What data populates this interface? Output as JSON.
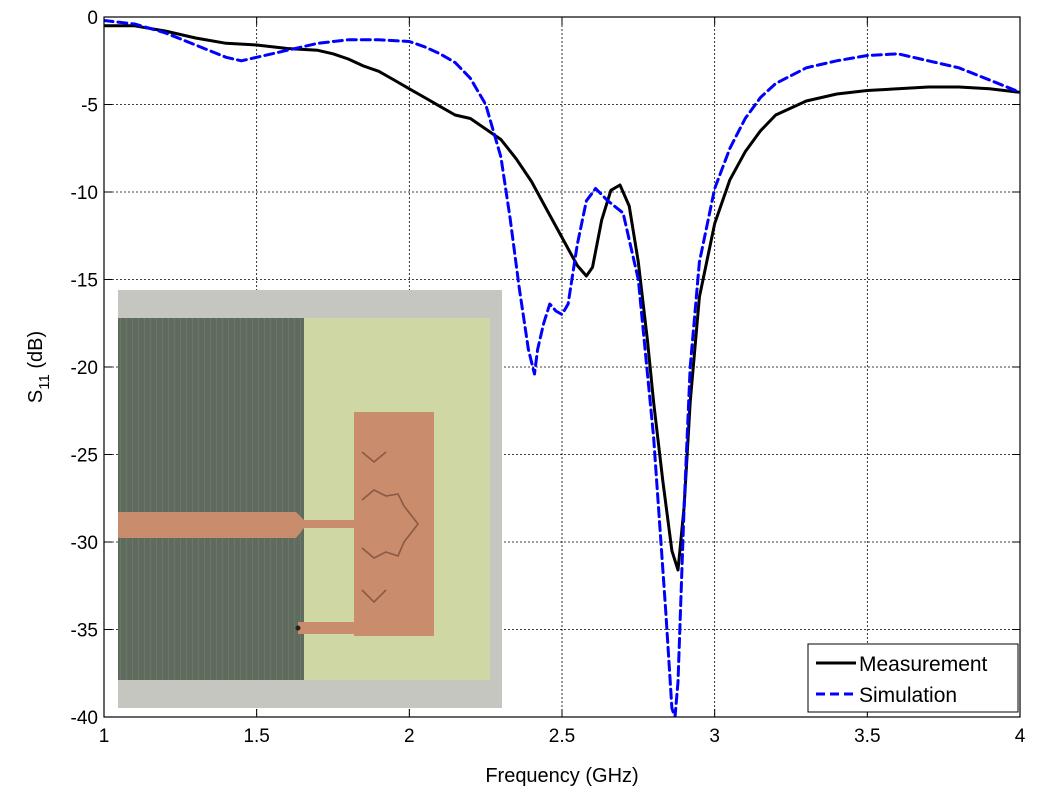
{
  "chart_data": {
    "type": "line",
    "xlabel": "Frequency (GHz)",
    "ylabel": {
      "main": "S",
      "sub": "11",
      "unit": " (dB)"
    },
    "xlim": [
      1,
      4
    ],
    "ylim": [
      -40,
      0
    ],
    "xticks": [
      1,
      1.5,
      2,
      2.5,
      3,
      3.5,
      4
    ],
    "xtick_labels": [
      "1",
      "1.5",
      "2",
      "2.5",
      "3",
      "3.5",
      "4"
    ],
    "yticks": [
      0,
      -5,
      -10,
      -15,
      -20,
      -25,
      -30,
      -35,
      -40
    ],
    "ytick_labels": [
      "0",
      "-5",
      "-10",
      "-15",
      "-20",
      "-25",
      "-30",
      "-35",
      "-40"
    ],
    "grid": true,
    "legend_position": "bottom-right",
    "series": [
      {
        "name": "Measurement",
        "color": "#000000",
        "dash": "solid",
        "x": [
          1.0,
          1.1,
          1.2,
          1.3,
          1.4,
          1.5,
          1.6,
          1.7,
          1.75,
          1.8,
          1.85,
          1.9,
          1.95,
          2.0,
          2.05,
          2.1,
          2.15,
          2.2,
          2.25,
          2.3,
          2.35,
          2.4,
          2.45,
          2.5,
          2.55,
          2.58,
          2.6,
          2.63,
          2.66,
          2.69,
          2.72,
          2.75,
          2.78,
          2.8,
          2.83,
          2.86,
          2.88,
          2.9,
          2.92,
          2.95,
          3.0,
          3.05,
          3.1,
          3.15,
          3.2,
          3.3,
          3.4,
          3.5,
          3.6,
          3.7,
          3.8,
          3.9,
          4.0
        ],
        "y": [
          -0.5,
          -0.5,
          -0.8,
          -1.2,
          -1.5,
          -1.6,
          -1.8,
          -1.9,
          -2.1,
          -2.4,
          -2.8,
          -3.1,
          -3.6,
          -4.1,
          -4.6,
          -5.1,
          -5.6,
          -5.8,
          -6.4,
          -7.0,
          -8.1,
          -9.4,
          -11.0,
          -12.6,
          -14.2,
          -14.8,
          -14.3,
          -11.6,
          -9.9,
          -9.6,
          -10.8,
          -14.0,
          -18.5,
          -22.0,
          -26.5,
          -30.5,
          -31.6,
          -28.0,
          -22.0,
          -16.0,
          -11.8,
          -9.3,
          -7.7,
          -6.5,
          -5.6,
          -4.8,
          -4.4,
          -4.2,
          -4.1,
          -4.0,
          -4.0,
          -4.1,
          -4.3
        ]
      },
      {
        "name": "Simulation",
        "color": "#0000ff",
        "dash": "dashed",
        "x": [
          1.0,
          1.1,
          1.2,
          1.3,
          1.4,
          1.45,
          1.5,
          1.6,
          1.7,
          1.8,
          1.9,
          2.0,
          2.05,
          2.1,
          2.15,
          2.2,
          2.25,
          2.3,
          2.33,
          2.36,
          2.39,
          2.41,
          2.42,
          2.44,
          2.46,
          2.48,
          2.5,
          2.52,
          2.55,
          2.58,
          2.61,
          2.65,
          2.7,
          2.75,
          2.8,
          2.84,
          2.86,
          2.87,
          2.88,
          2.9,
          2.92,
          2.95,
          3.0,
          3.05,
          3.1,
          3.15,
          3.2,
          3.3,
          3.4,
          3.5,
          3.6,
          3.7,
          3.8,
          3.9,
          4.0
        ],
        "y": [
          -0.2,
          -0.4,
          -0.9,
          -1.6,
          -2.3,
          -2.5,
          -2.3,
          -1.9,
          -1.5,
          -1.3,
          -1.3,
          -1.4,
          -1.7,
          -2.1,
          -2.6,
          -3.5,
          -5.0,
          -8.0,
          -11.5,
          -15.5,
          -19.0,
          -20.4,
          -19.0,
          -17.5,
          -16.4,
          -16.8,
          -17.0,
          -16.4,
          -13.0,
          -10.5,
          -9.8,
          -10.5,
          -11.2,
          -15.0,
          -24.0,
          -34.0,
          -39.5,
          -40.0,
          -38.0,
          -28.0,
          -20.0,
          -14.0,
          -9.8,
          -7.5,
          -5.8,
          -4.6,
          -3.8,
          -2.9,
          -2.5,
          -2.2,
          -2.1,
          -2.5,
          -2.9,
          -3.6,
          -4.3
        ]
      }
    ]
  }
}
